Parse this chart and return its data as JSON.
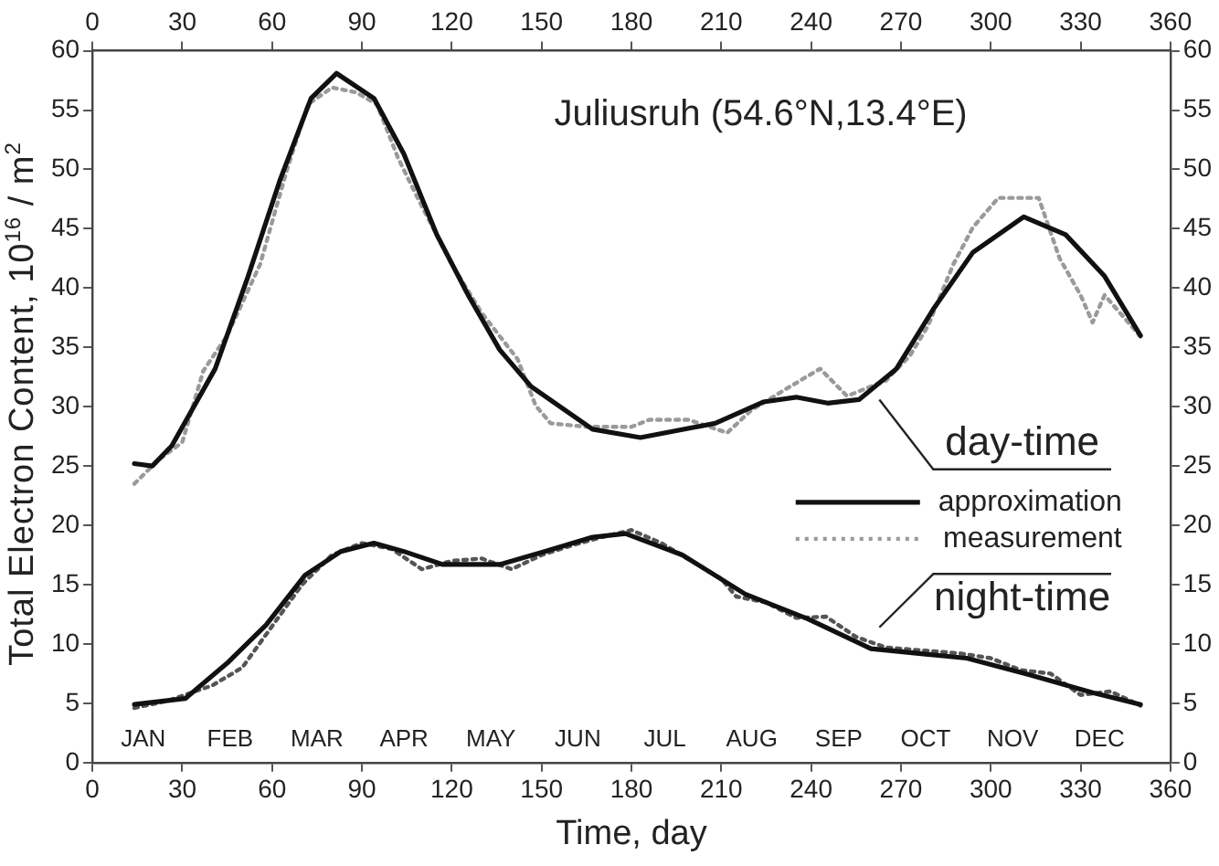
{
  "chart_data": {
    "type": "line",
    "title": "Juliusruh (54.6°N,13.4°E)",
    "xlabel": "Time, day",
    "ylabel": "Total Electron Content, 10$^{16}$ / m$^{2}$",
    "xlim": [
      0,
      360
    ],
    "xticks": [
      0,
      30,
      60,
      90,
      120,
      150,
      180,
      210,
      240,
      270,
      300,
      330,
      360
    ],
    "x2lim": [
      0,
      360
    ],
    "x2ticks": [
      0,
      30,
      60,
      90,
      120,
      150,
      180,
      210,
      240,
      270,
      300,
      330,
      360
    ],
    "ylim": [
      0,
      60
    ],
    "yticks": [
      0,
      5,
      10,
      15,
      20,
      25,
      30,
      35,
      40,
      45,
      50,
      55,
      60
    ],
    "y2lim": [
      0,
      60
    ],
    "y2ticks": [
      0,
      5,
      10,
      15,
      20,
      25,
      30,
      35,
      40,
      45,
      50,
      55,
      60
    ],
    "grid": false,
    "legend": "right",
    "series": [
      {
        "name": "approximation",
        "color": "#111111",
        "line_style": "solid",
        "x": [
          14,
          20,
          26.5,
          41,
          52,
          62.5,
          73,
          81.5,
          94,
          104,
          115,
          125.5,
          136,
          146.5,
          167,
          183,
          208,
          224,
          235,
          245.5,
          256,
          268.5,
          281,
          294,
          311,
          325,
          338,
          350
        ],
        "values": [
          25.2,
          25,
          26.7,
          33.2,
          41,
          49,
          56,
          58.1,
          56,
          51.3,
          44.5,
          39.4,
          34.8,
          31.7,
          28.1,
          27.4,
          28.6,
          30.4,
          30.8,
          30.3,
          30.6,
          33.2,
          38.3,
          43,
          46,
          44.5,
          41,
          36
        ]
      },
      {
        "name": "measurement",
        "color": "#9a9a9a",
        "line_style": "dotted",
        "x": [
          14,
          18,
          22,
          30,
          37,
          45,
          56,
          65,
          72,
          80,
          88,
          95,
          102,
          108.6,
          120,
          130,
          142,
          148,
          153,
          165,
          180,
          186,
          199,
          212,
          220,
          233,
          243,
          252,
          265,
          273,
          279,
          287.5,
          294,
          302.5,
          316,
          323,
          330,
          334,
          338,
          347,
          350
        ],
        "values": [
          23.5,
          24.5,
          25.5,
          27,
          33,
          36,
          42,
          50,
          55.5,
          56.9,
          56.5,
          55.5,
          51,
          47.6,
          42,
          37.9,
          34,
          30.1,
          28.6,
          28.3,
          28.3,
          28.9,
          28.9,
          27.8,
          29.7,
          31.7,
          33.2,
          30.9,
          32.2,
          34.3,
          36.8,
          42,
          45.1,
          47.6,
          47.6,
          42.5,
          39.4,
          37.1,
          39.4,
          36.8,
          35.9
        ]
      },
      {
        "color": "#111111",
        "line_style": "solid",
        "x": [
          14,
          31,
          45.5,
          58,
          71,
          83,
          94,
          104,
          117,
          136,
          151,
          167,
          178,
          197,
          218,
          239,
          260,
          292,
          313,
          334,
          350
        ],
        "values": [
          4.9,
          5.4,
          8.5,
          11.6,
          15.8,
          17.8,
          18.5,
          17.8,
          16.7,
          16.7,
          17.8,
          19,
          19.3,
          17.5,
          14.2,
          12.1,
          9.6,
          8.8,
          7.4,
          5.9,
          4.9
        ]
      },
      {
        "color": "#555555",
        "line_style": "dotted",
        "x": [
          14,
          25,
          40,
          50,
          60,
          70,
          80,
          90,
          100,
          110,
          120,
          130,
          140,
          150,
          160,
          170,
          180,
          190,
          200,
          210,
          215,
          225,
          235,
          245,
          255,
          265,
          280,
          290,
          300,
          310,
          320,
          330,
          340,
          350
        ],
        "values": [
          4.6,
          5.2,
          6.5,
          8,
          11.5,
          15,
          17.5,
          18.5,
          18,
          16.3,
          17,
          17.2,
          16.3,
          17.5,
          18.3,
          19,
          19.6,
          18.5,
          17,
          15.5,
          14,
          13.5,
          12.2,
          12.3,
          10.6,
          9.7,
          9.4,
          9.2,
          8.8,
          7.8,
          7.5,
          5.7,
          6,
          4.8
        ]
      }
    ],
    "annotations": [
      "day-time",
      "night-time",
      "JAN",
      "FEB",
      "MAR",
      "APR",
      "MAY",
      "JUN",
      "JUL",
      "AUG",
      "SEP",
      "OCT",
      "NOV",
      "DEC"
    ]
  }
}
